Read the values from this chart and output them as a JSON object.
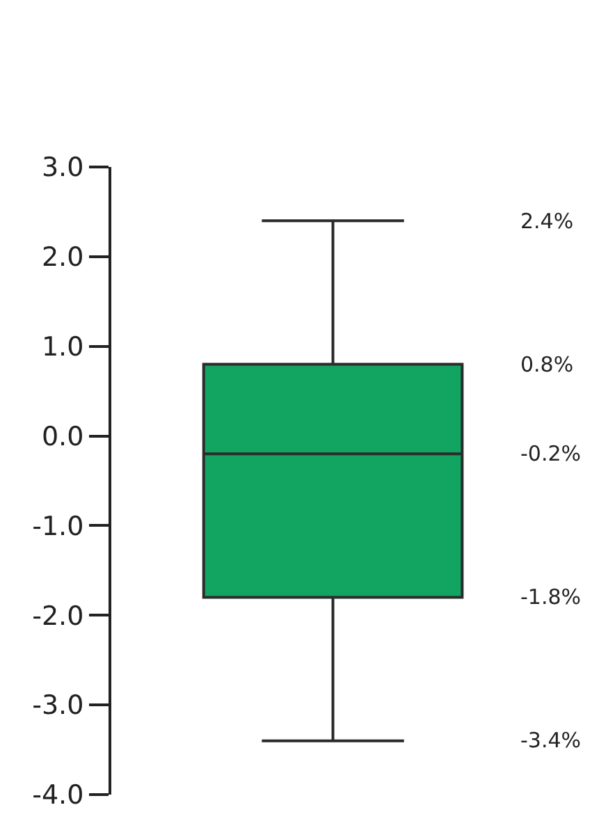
{
  "chart_data": {
    "type": "box",
    "categories": [
      null
    ],
    "color": "#12a562",
    "boxes": [
      {
        "low": -3.4,
        "q1": -1.8,
        "median": -0.2,
        "q3": 0.8,
        "high": 2.4
      }
    ],
    "ylim": [
      -4,
      3
    ],
    "yticks": [
      {
        "value": 3,
        "label": "3.0"
      },
      {
        "value": 2,
        "label": "2.0"
      },
      {
        "value": 1,
        "label": "1.0"
      },
      {
        "value": 0,
        "label": "0.0"
      },
      {
        "value": -1,
        "label": "-1.0"
      },
      {
        "value": -2,
        "label": "-2.0"
      },
      {
        "value": -3,
        "label": "-3.0"
      },
      {
        "value": -4,
        "label": "-4.0"
      }
    ],
    "tick_labels": "y",
    "annotations": [
      "2.4%",
      "0.8%",
      "-0.2%",
      "-1.8%",
      "-3.4%"
    ]
  }
}
